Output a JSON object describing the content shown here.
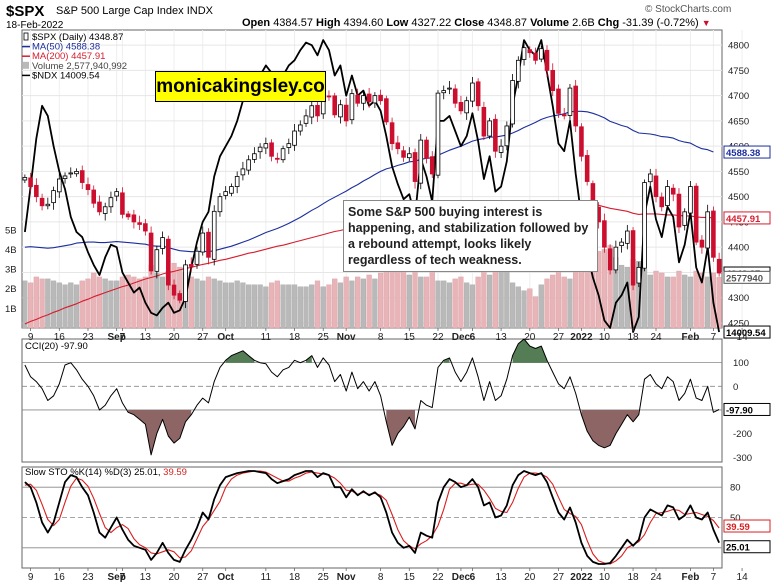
{
  "header": {
    "ticker": "$SPX",
    "name": "S&P 500 Large Cap Index",
    "exchange": "INDX",
    "date": "18-Feb-2022",
    "open_label": "Open",
    "open": "4384.57",
    "high_label": "High",
    "high": "4394.60",
    "low_label": "Low",
    "low": "4327.22",
    "close_label": "Close",
    "close": "4348.87",
    "volume_label": "Volume",
    "volume": "2.6B",
    "chg_label": "Chg",
    "chg": "-31.39 (-0.72%)",
    "chg_arrow": "▼",
    "source": "© StockCharts.com"
  },
  "watermark": "monicakingsley.co",
  "annotation": "Some S&P 500 buying interest is happening, and stabilization followed by a rebound attempt, looks likely regardless of tech weakness.",
  "colors": {
    "up": "#000000",
    "down": "#cc0f2e",
    "ma50": "#1b2e9e",
    "ma200": "#d51e2f",
    "ndx": "#000000",
    "vol_up": "#b9b9b9",
    "vol_down": "#e8b4b8",
    "cci_pos": "#557d55",
    "cci_neg": "#8d6565",
    "sto_k": "#000000",
    "sto_d": "#d91f1f"
  },
  "chart_data": [
    {
      "type": "candlestick",
      "title": "$SPX (Daily) 4348.87",
      "legend": [
        {
          "name": "$SPX (Daily)",
          "value": "4348.87",
          "color": "#000000",
          "icon": "candle"
        },
        {
          "name": "MA(50)",
          "value": "4588.38",
          "color": "#1b2e9e",
          "icon": "line"
        },
        {
          "name": "MA(200)",
          "value": "4457.91",
          "color": "#d51e2f",
          "icon": "line"
        },
        {
          "name": "Volume",
          "value": "2,577,940,992",
          "color": "#b9b9b9",
          "icon": "bar"
        },
        {
          "name": "$NDX",
          "value": "14009.54",
          "color": "#000000",
          "icon": "line"
        }
      ],
      "legend_position": "top-left",
      "y_ticks": [
        4250,
        4300,
        4350,
        4400,
        4450,
        4500,
        4550,
        4600,
        4650,
        4700,
        4750,
        4800
      ],
      "ylim": [
        4240,
        4830
      ],
      "volume_ticks": [
        "1B",
        "2B",
        "3B",
        "4B",
        "5B"
      ],
      "volume_ylim": [
        0,
        5.6
      ],
      "last_value_tags": [
        {
          "value": "4588.38",
          "price": 4588.38,
          "color": "#1b2e9e"
        },
        {
          "value": "4457.91",
          "price": 4457.91,
          "color": "#d51e2f"
        },
        {
          "value": "4348.87",
          "price": 4348.87,
          "color": "#000000"
        },
        {
          "value": "2577940",
          "volume": 2.58,
          "color": "#555555"
        },
        {
          "value": "14009.54",
          "price": 4232,
          "color": "#000000"
        }
      ],
      "close": [
        4538,
        4520,
        4500,
        4482,
        4485,
        4512,
        4535,
        4541,
        4547,
        4550,
        4528,
        4514,
        4487,
        4470,
        4480,
        4498,
        4510,
        4465,
        4460,
        4450,
        4445,
        4432,
        4353,
        4395,
        4419,
        4325,
        4305,
        4295,
        4365,
        4362,
        4392,
        4428,
        4380,
        4471,
        4500,
        4510,
        4520,
        4540,
        4555,
        4573,
        4585,
        4598,
        4605,
        4580,
        4574,
        4595,
        4605,
        4630,
        4642,
        4660,
        4680,
        4660,
        4701,
        4698,
        4662,
        4682,
        4650,
        4704,
        4685,
        4700,
        4688,
        4700,
        4690,
        4648,
        4605,
        4595,
        4578,
        4585,
        4530,
        4612,
        4576,
        4545,
        4705,
        4710,
        4715,
        4685,
        4670,
        4690,
        4725,
        4680,
        4620,
        4650,
        4590,
        4600,
        4640,
        4730,
        4770,
        4795,
        4785,
        4770,
        4793,
        4750,
        4710,
        4665,
        4660,
        4715,
        4640,
        4580,
        4530,
        4480,
        4450,
        4400,
        4355,
        4400,
        4410,
        4432,
        4325,
        4360,
        4528,
        4545,
        4500,
        4480,
        4520,
        4505,
        4440,
        4470,
        4520,
        4410,
        4400,
        4470,
        4380,
        4348.87
      ],
      "ma50": [
        4400,
        4401,
        4400,
        4399,
        4398,
        4399,
        4401,
        4403,
        4405,
        4408,
        4409,
        4410,
        4410,
        4409,
        4409,
        4410,
        4411,
        4410,
        4409,
        4408,
        4407,
        4406,
        4403,
        4402,
        4402,
        4399,
        4396,
        4393,
        4392,
        4391,
        4391,
        4392,
        4391,
        4393,
        4396,
        4399,
        4402,
        4406,
        4410,
        4414,
        4419,
        4424,
        4429,
        4433,
        4437,
        4442,
        4447,
        4453,
        4459,
        4466,
        4473,
        4479,
        4486,
        4493,
        4499,
        4505,
        4511,
        4518,
        4524,
        4531,
        4537,
        4544,
        4550,
        4555,
        4558,
        4562,
        4565,
        4569,
        4570,
        4574,
        4576,
        4577,
        4582,
        4587,
        4592,
        4596,
        4600,
        4605,
        4610,
        4613,
        4615,
        4618,
        4618,
        4620,
        4622,
        4626,
        4631,
        4637,
        4642,
        4647,
        4653,
        4657,
        4660,
        4662,
        4664,
        4668,
        4669,
        4669,
        4668,
        4665,
        4661,
        4656,
        4649,
        4645,
        4641,
        4638,
        4631,
        4626,
        4625,
        4624,
        4622,
        4619,
        4618,
        4616,
        4611,
        4608,
        4606,
        4600,
        4595,
        4593,
        4588.38
      ],
      "ma200": [
        4248,
        4253,
        4257,
        4262,
        4266,
        4271,
        4275,
        4280,
        4284,
        4288,
        4293,
        4297,
        4302,
        4306,
        4310,
        4314,
        4318,
        4322,
        4325,
        4329,
        4333,
        4337,
        4340,
        4343,
        4347,
        4350,
        4352,
        4355,
        4358,
        4360,
        4363,
        4366,
        4368,
        4371,
        4374,
        4376,
        4379,
        4382,
        4385,
        4388,
        4390,
        4393,
        4396,
        4399,
        4402,
        4404,
        4407,
        4410,
        4413,
        4416,
        4419,
        4422,
        4425,
        4428,
        4431,
        4433,
        4436,
        4439,
        4441,
        4444,
        4447,
        4449,
        4452,
        4454,
        4456,
        4458,
        4460,
        4462,
        4463,
        4465,
        4466,
        4468,
        4469,
        4471,
        4473,
        4475,
        4476,
        4478,
        4480,
        4481,
        4481,
        4482,
        4482,
        4482,
        4482,
        4484,
        4485,
        4487,
        4488,
        4489,
        4490,
        4491,
        4491,
        4491,
        4491,
        4491,
        4490,
        4489,
        4487,
        4485,
        4483,
        4480,
        4477,
        4475,
        4473,
        4471,
        4467,
        4465,
        4466,
        4466,
        4466,
        4465,
        4464,
        4464,
        4463,
        4462,
        4462,
        4460,
        4459,
        4459,
        4457.91
      ],
      "ndx_overlay": [
        4430,
        4520,
        4615,
        4680,
        4660,
        4600,
        4550,
        4515,
        4460,
        4430,
        4420,
        4390,
        4365,
        4345,
        4380,
        4405,
        4400,
        4350,
        4330,
        4310,
        4320,
        4290,
        4270,
        4265,
        4280,
        4290,
        4270,
        4275,
        4300,
        4360,
        4410,
        4450,
        4470,
        4540,
        4580,
        4600,
        4620,
        4650,
        4690,
        4700,
        4720,
        4740,
        4760,
        4745,
        4720,
        4740,
        4760,
        4770,
        4790,
        4805,
        4800,
        4780,
        4810,
        4790,
        4740,
        4760,
        4700,
        4740,
        4700,
        4710,
        4680,
        4690,
        4670,
        4620,
        4560,
        4525,
        4495,
        4505,
        4460,
        4575,
        4540,
        4490,
        4650,
        4650,
        4660,
        4630,
        4600,
        4620,
        4665,
        4610,
        4535,
        4580,
        4510,
        4520,
        4570,
        4680,
        4740,
        4810,
        4790,
        4780,
        4810,
        4745,
        4680,
        4605,
        4590,
        4650,
        4545,
        4460,
        4390,
        4340,
        4305,
        4255,
        4240,
        4290,
        4305,
        4330,
        4232,
        4262,
        4465,
        4520,
        4455,
        4420,
        4480,
        4460,
        4370,
        4405,
        4470,
        4360,
        4330,
        4400,
        4290,
        4232
      ],
      "volume": [
        2.4,
        2.3,
        2.6,
        2.5,
        2.5,
        2.4,
        2.3,
        2.2,
        2.3,
        2.2,
        2.4,
        2.5,
        2.8,
        2.6,
        2.5,
        2.4,
        2.4,
        2.6,
        2.7,
        2.6,
        2.5,
        2.6,
        3.2,
        2.8,
        2.6,
        2.9,
        3.3,
        3.1,
        2.8,
        2.6,
        2.5,
        2.4,
        2.6,
        2.5,
        2.4,
        2.3,
        2.3,
        2.4,
        2.3,
        2.2,
        2.2,
        2.2,
        2.1,
        2.3,
        2.4,
        2.2,
        2.2,
        2.2,
        2.1,
        2.1,
        2.2,
        2.4,
        2.1,
        2.2,
        2.5,
        2.3,
        2.6,
        2.4,
        2.6,
        2.5,
        2.7,
        2.5,
        2.8,
        3.0,
        3.3,
        2.9,
        2.9,
        2.7,
        3.1,
        2.6,
        2.6,
        2.9,
        2.4,
        2.4,
        2.3,
        2.5,
        2.6,
        2.3,
        2.2,
        2.6,
        3.2,
        2.7,
        3.5,
        3.3,
        2.9,
        2.3,
        2.1,
        1.9,
        2.0,
        1.6,
        2.2,
        2.5,
        2.7,
        2.9,
        2.6,
        2.5,
        2.9,
        3.1,
        3.6,
        3.7,
        3.9,
        4.0,
        4.2,
        3.6,
        3.2,
        3.1,
        3.5,
        3.4,
        3.0,
        2.7,
        2.9,
        2.8,
        2.6,
        2.6,
        2.9,
        2.7,
        2.6,
        2.9,
        2.8,
        2.6,
        2.8,
        2.58
      ]
    },
    {
      "type": "line",
      "title": "CCI(20) -97.90",
      "series": [
        {
          "name": "CCI(20)",
          "value": "-97.90"
        }
      ],
      "y_ticks": [
        100,
        0,
        -100,
        -200,
        -300
      ],
      "ylim": [
        -320,
        200
      ],
      "reference_lines": [
        100,
        0,
        -100
      ],
      "last_value": "-97.90",
      "values": [
        90,
        40,
        20,
        -10,
        -60,
        -40,
        10,
        90,
        100,
        70,
        30,
        0,
        -40,
        -100,
        -80,
        -40,
        -10,
        -70,
        -110,
        -120,
        -140,
        -160,
        -290,
        -200,
        -140,
        -210,
        -240,
        -220,
        -150,
        -120,
        -80,
        -50,
        -70,
        20,
        80,
        110,
        130,
        140,
        150,
        130,
        110,
        100,
        95,
        60,
        40,
        70,
        80,
        110,
        100,
        110,
        130,
        80,
        120,
        90,
        20,
        50,
        -20,
        60,
        -10,
        20,
        -20,
        20,
        -40,
        -150,
        -250,
        -200,
        -170,
        -130,
        -180,
        -60,
        -80,
        -90,
        80,
        110,
        120,
        60,
        20,
        60,
        120,
        40,
        -60,
        20,
        -60,
        -40,
        30,
        130,
        180,
        200,
        170,
        160,
        170,
        110,
        60,
        10,
        -10,
        40,
        -30,
        -120,
        -190,
        -230,
        -250,
        -260,
        -250,
        -200,
        -160,
        -120,
        -150,
        -120,
        30,
        50,
        10,
        -10,
        40,
        20,
        -60,
        -30,
        30,
        -50,
        -60,
        0,
        -110,
        -97.9
      ]
    },
    {
      "type": "line",
      "title": "Slow STO %K(14) %D(3) 25.01, 39.59",
      "series": [
        {
          "name": "%K(14)",
          "value": "25.01",
          "color": "#000000"
        },
        {
          "name": "%D(3)",
          "value": "39.59",
          "color": "#d91f1f"
        }
      ],
      "y_ticks": [
        80,
        50,
        20
      ],
      "ylim": [
        0,
        100
      ],
      "reference_lines": [
        80,
        50,
        20
      ],
      "last_values": [
        "39.59",
        "25.01"
      ],
      "k": [
        85,
        80,
        65,
        45,
        35,
        45,
        65,
        85,
        92,
        90,
        80,
        72,
        55,
        35,
        30,
        40,
        50,
        38,
        28,
        22,
        20,
        18,
        8,
        15,
        25,
        15,
        8,
        6,
        18,
        28,
        40,
        55,
        48,
        68,
        82,
        90,
        92,
        94,
        95,
        96,
        96,
        95,
        94,
        88,
        84,
        86,
        88,
        92,
        94,
        96,
        96,
        90,
        94,
        92,
        80,
        80,
        70,
        78,
        72,
        76,
        72,
        75,
        70,
        55,
        35,
        25,
        20,
        22,
        15,
        35,
        32,
        30,
        65,
        80,
        88,
        85,
        80,
        82,
        88,
        80,
        62,
        65,
        50,
        52,
        62,
        82,
        92,
        96,
        94,
        92,
        94,
        85,
        70,
        55,
        48,
        60,
        45,
        25,
        12,
        6,
        4,
        4,
        5,
        12,
        20,
        28,
        22,
        28,
        50,
        58,
        55,
        52,
        62,
        60,
        48,
        52,
        62,
        50,
        48,
        55,
        38,
        25.01
      ],
      "d": [
        82,
        83,
        77,
        63,
        48,
        42,
        48,
        65,
        81,
        89,
        87,
        81,
        69,
        54,
        40,
        35,
        40,
        43,
        39,
        29,
        23,
        20,
        15,
        14,
        16,
        18,
        16,
        10,
        11,
        17,
        29,
        41,
        48,
        57,
        66,
        80,
        88,
        92,
        94,
        95,
        96,
        96,
        95,
        92,
        89,
        86,
        86,
        89,
        91,
        94,
        95,
        94,
        93,
        92,
        89,
        84,
        77,
        76,
        73,
        75,
        73,
        74,
        72,
        67,
        53,
        38,
        27,
        22,
        19,
        24,
        27,
        32,
        42,
        58,
        78,
        84,
        84,
        82,
        83,
        83,
        77,
        69,
        59,
        56,
        55,
        65,
        79,
        90,
        94,
        94,
        93,
        90,
        83,
        70,
        58,
        54,
        51,
        43,
        27,
        14,
        7,
        5,
        4,
        7,
        12,
        20,
        23,
        26,
        33,
        45,
        54,
        55,
        56,
        58,
        57,
        53,
        54,
        55,
        53,
        51,
        47,
        39.59
      ]
    }
  ],
  "x_axis": {
    "labels": [
      {
        "label": "9",
        "bar": 1,
        "bold": false
      },
      {
        "label": "16",
        "bar": 6,
        "bold": false
      },
      {
        "label": "23",
        "bar": 11,
        "bold": false
      },
      {
        "label": "Sep",
        "bar": 16,
        "bold": true
      },
      {
        "label": "7",
        "bar": 17,
        "bold": true
      },
      {
        "label": "13",
        "bar": 21,
        "bold": false
      },
      {
        "label": "20",
        "bar": 26,
        "bold": false
      },
      {
        "label": "27",
        "bar": 31,
        "bold": false
      },
      {
        "label": "Oct",
        "bar": 35,
        "bold": true
      },
      {
        "label": "11",
        "bar": 42,
        "bold": false
      },
      {
        "label": "18",
        "bar": 47,
        "bold": false
      },
      {
        "label": "25",
        "bar": 52,
        "bold": false
      },
      {
        "label": "Nov",
        "bar": 56,
        "bold": true
      },
      {
        "label": "8",
        "bar": 62,
        "bold": false
      },
      {
        "label": "15",
        "bar": 67,
        "bold": false
      },
      {
        "label": "22",
        "bar": 72,
        "bold": false
      },
      {
        "label": "Dec",
        "bar": 76,
        "bold": true
      },
      {
        "label": "6",
        "bar": 78,
        "bold": true
      },
      {
        "label": "13",
        "bar": 83,
        "bold": false
      },
      {
        "label": "20",
        "bar": 88,
        "bold": false
      },
      {
        "label": "27",
        "bar": 93,
        "bold": false
      },
      {
        "label": "2022",
        "bar": 97,
        "bold": true
      },
      {
        "label": "10",
        "bar": 101,
        "bold": false
      },
      {
        "label": "18",
        "bar": 106,
        "bold": false
      },
      {
        "label": "24",
        "bar": 110,
        "bold": false
      },
      {
        "label": "Feb",
        "bar": 116,
        "bold": true
      },
      {
        "label": "7",
        "bar": 120,
        "bold": false
      },
      {
        "label": "14",
        "bar": 125,
        "bold": false
      }
    ]
  }
}
